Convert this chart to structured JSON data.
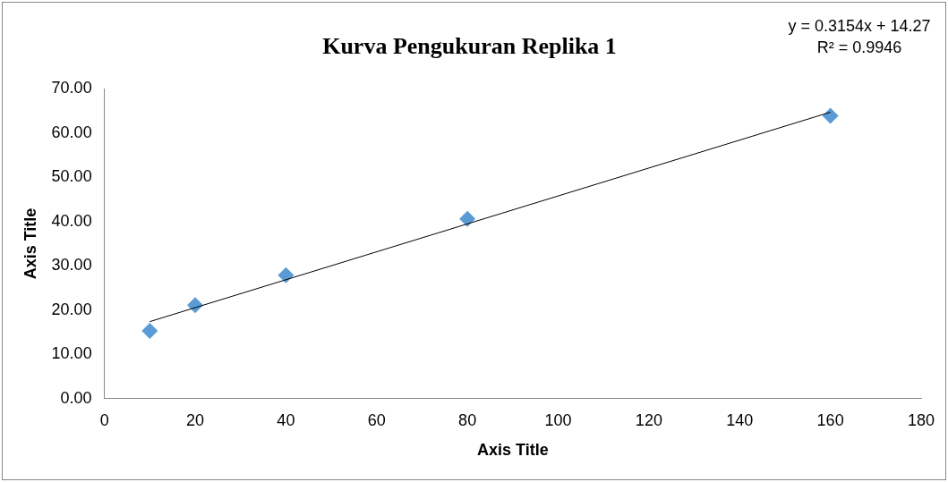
{
  "chart_data": {
    "type": "scatter",
    "title": "Kurva Pengukuran Replika 1",
    "xlabel": "Axis Title",
    "ylabel": "Axis Title",
    "x": [
      10,
      20,
      40,
      80,
      160
    ],
    "series": [
      {
        "color": "#5b9bd5",
        "values": [
          15.3,
          21.1,
          27.9,
          40.6,
          63.9
        ],
        "marker": "diamond"
      },
      {
        "type": "line",
        "color": "#000000",
        "x": [
          10,
          160
        ],
        "values": [
          17.4,
          64.7
        ],
        "marker": "none"
      }
    ],
    "xlim": [
      0,
      180
    ],
    "xticks": [
      0,
      20,
      40,
      60,
      80,
      100,
      120,
      140,
      160,
      180
    ],
    "ylim": [
      0,
      70
    ],
    "yticks": [
      {
        "value": 0,
        "label": "0.00"
      },
      {
        "value": 10,
        "label": "10.00"
      },
      {
        "value": 20,
        "label": "20.00"
      },
      {
        "value": 30,
        "label": "30.00"
      },
      {
        "value": 40,
        "label": "40.00"
      },
      {
        "value": 50,
        "label": "50.00"
      },
      {
        "value": 60,
        "label": "60.00"
      },
      {
        "value": 70,
        "label": "70.00"
      }
    ],
    "annotations": [
      "y = 0.3154x + 14.27",
      "R² = 0.9946"
    ],
    "grid": false,
    "legend": false
  }
}
